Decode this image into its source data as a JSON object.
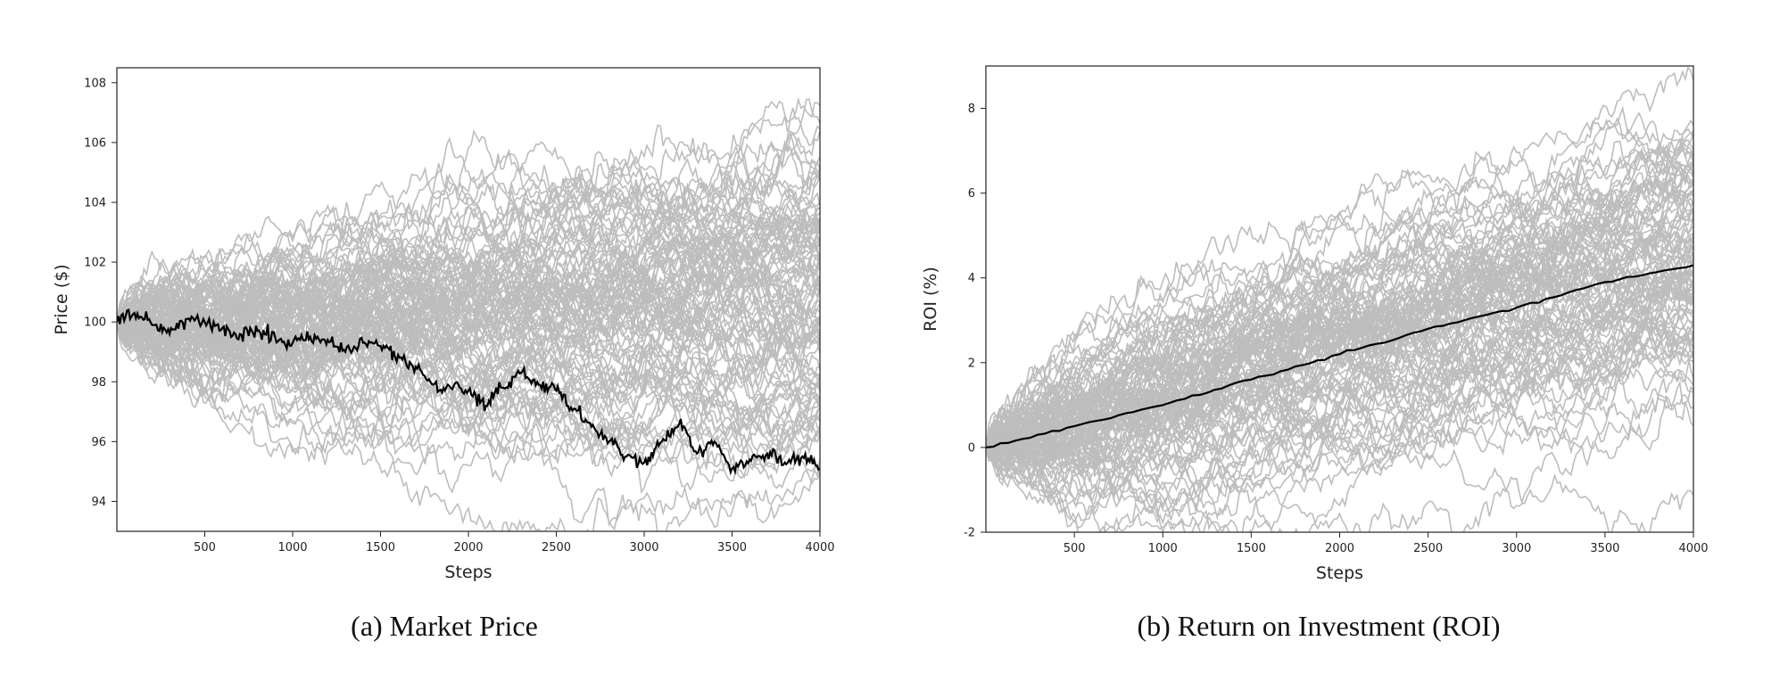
{
  "chart_data": [
    {
      "type": "line",
      "caption": "(a) Market Price",
      "xlabel": "Steps",
      "ylabel": "Price ($)",
      "xlim": [
        0,
        4000
      ],
      "ylim": [
        93,
        108.5
      ],
      "xticks": [
        500,
        1000,
        1500,
        2000,
        2500,
        3000,
        3500,
        4000
      ],
      "yticks": [
        94,
        96,
        98,
        100,
        102,
        104,
        106,
        108
      ],
      "grid": false,
      "background_series": {
        "count": 100,
        "color": "#bdbdbd",
        "start": 100,
        "drift_at_end": 0.6,
        "spread_at_end": 3.3,
        "step_noise": 0.07,
        "seed": 11
      },
      "highlight_series": {
        "color": "#000000",
        "x": [
          0,
          100,
          200,
          300,
          400,
          500,
          600,
          700,
          800,
          900,
          1000,
          1100,
          1200,
          1300,
          1400,
          1500,
          1600,
          1700,
          1800,
          1900,
          2000,
          2100,
          2200,
          2300,
          2400,
          2500,
          2600,
          2700,
          2800,
          2900,
          3000,
          3100,
          3200,
          3300,
          3400,
          3500,
          3600,
          3700,
          3800,
          3900,
          4000
        ],
        "y": [
          100.0,
          100.3,
          99.9,
          99.6,
          100.1,
          100.0,
          99.8,
          99.6,
          99.7,
          99.5,
          99.3,
          99.5,
          99.4,
          99.0,
          99.3,
          99.2,
          98.9,
          98.5,
          97.9,
          97.8,
          97.7,
          97.2,
          97.8,
          98.3,
          97.9,
          97.7,
          97.1,
          96.5,
          96.0,
          95.5,
          95.3,
          96.0,
          96.6,
          95.6,
          96.0,
          95.1,
          95.4,
          95.6,
          95.3,
          95.5,
          95.1
        ]
      }
    },
    {
      "type": "line",
      "caption": "(b) Return on Investment (ROI)",
      "xlabel": "Steps",
      "ylabel": "ROI (%)",
      "xlim": [
        0,
        4000
      ],
      "ylim": [
        -2,
        9
      ],
      "xticks": [
        500,
        1000,
        1500,
        2000,
        2500,
        3000,
        3500,
        4000
      ],
      "yticks": [
        -2,
        0,
        2,
        4,
        6,
        8
      ],
      "grid": false,
      "background_series": {
        "count": 100,
        "color": "#bdbdbd",
        "start": 0,
        "drift_at_end": 4.3,
        "spread_at_end": 1.7,
        "step_noise": 0.045,
        "seed": 29
      },
      "highlight_series": {
        "color": "#000000",
        "x": [
          0,
          500,
          1000,
          1500,
          2000,
          2500,
          3000,
          3500,
          4000
        ],
        "y": [
          0.0,
          0.5,
          1.0,
          1.6,
          2.2,
          2.8,
          3.3,
          3.9,
          4.3
        ]
      }
    }
  ]
}
